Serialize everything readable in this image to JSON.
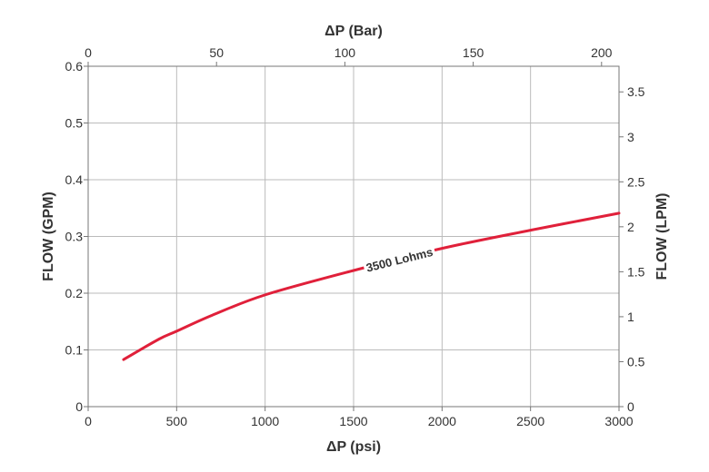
{
  "chart_data": {
    "type": "line",
    "title": "",
    "xlabel": "ΔP (psi)",
    "ylabel": "FLOW (GPM)",
    "x2label": "ΔP (Bar)",
    "y2label": "FLOW (LPM)",
    "xlim": [
      0,
      3000
    ],
    "ylim": [
      0,
      0.6
    ],
    "x2lim": [
      0,
      206.8
    ],
    "y2lim": [
      0,
      3.785
    ],
    "xticks": [
      "0",
      "500",
      "1000",
      "1500",
      "2000",
      "2500",
      "3000"
    ],
    "yticks": [
      "0",
      "0.1",
      "0.2",
      "0.3",
      "0.4",
      "0.5",
      "0.6"
    ],
    "x2ticks": [
      "0",
      "50",
      "100",
      "150",
      "200"
    ],
    "y2ticks": [
      "0",
      "0.5",
      "1",
      "1.5",
      "2",
      "2.5",
      "3",
      "3.5"
    ],
    "grid": true,
    "series": [
      {
        "name": "3500 Lohms",
        "color": "#e0203a",
        "x": [
          200,
          400,
          500,
          700,
          1000,
          1500,
          2000,
          2500,
          3000
        ],
        "y": [
          0.083,
          0.119,
          0.133,
          0.161,
          0.197,
          0.24,
          0.279,
          0.311,
          0.341
        ]
      }
    ],
    "annotation": "3500 Lohms"
  }
}
